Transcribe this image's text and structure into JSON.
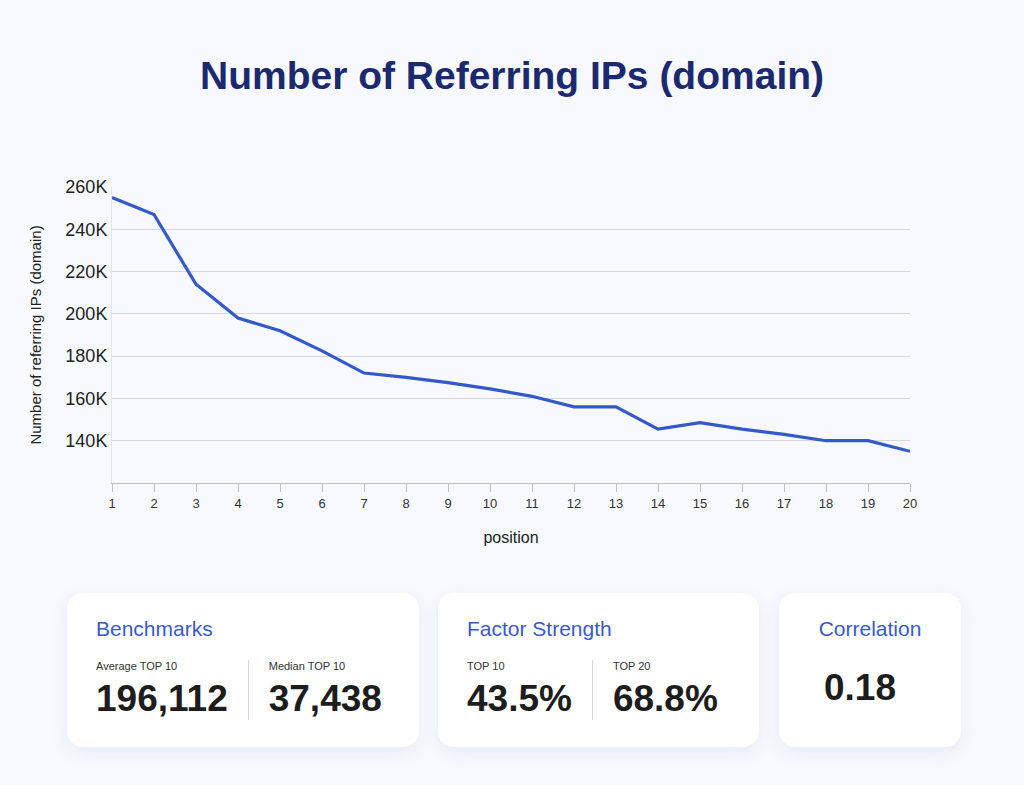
{
  "chart_data": {
    "type": "line",
    "title": "Number of Referring IPs (domain)",
    "x_label": "position",
    "y_label": "Number of referring IPs (domain)",
    "x": [
      1,
      2,
      3,
      4,
      5,
      6,
      7,
      8,
      9,
      10,
      11,
      12,
      13,
      14,
      15,
      16,
      17,
      18,
      19,
      20
    ],
    "values": [
      255000,
      247000,
      214000,
      198000,
      192000,
      182500,
      172000,
      170000,
      167500,
      164500,
      161000,
      156000,
      156000,
      145500,
      148500,
      145500,
      143000,
      140000,
      140000,
      135000
    ],
    "color": "#3459c9",
    "xlim": [
      1,
      20
    ],
    "xticks": [
      1,
      2,
      3,
      4,
      5,
      6,
      7,
      8,
      9,
      10,
      11,
      12,
      13,
      14,
      15,
      16,
      17,
      18,
      19,
      20
    ],
    "ylim": [
      120000,
      260000
    ],
    "yticks": [
      {
        "value": 140000,
        "label": "140K"
      },
      {
        "value": 160000,
        "label": "160K"
      },
      {
        "value": 180000,
        "label": "180K"
      },
      {
        "value": 200000,
        "label": "200K"
      },
      {
        "value": 220000,
        "label": "220K"
      },
      {
        "value": 240000,
        "label": "240K"
      },
      {
        "value": 260000,
        "label": "260K"
      }
    ],
    "grid": true
  },
  "cards": [
    {
      "title": "Benchmarks",
      "items": [
        {
          "label": "Average TOP 10",
          "value": "196,112"
        },
        {
          "label": "Median TOP 10",
          "value": "37,438"
        }
      ]
    },
    {
      "title": "Factor Strength",
      "items": [
        {
          "label": "TOP 10",
          "value": "43.5%"
        },
        {
          "label": "TOP 20",
          "value": "68.8%"
        }
      ]
    },
    {
      "title": "Correlation",
      "items": [
        {
          "value": "0.18"
        }
      ]
    }
  ]
}
